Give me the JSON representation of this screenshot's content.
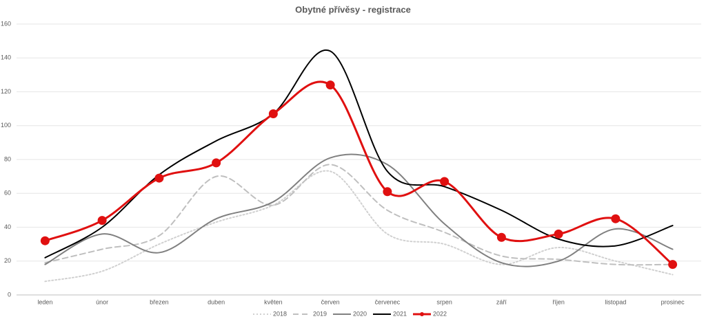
{
  "chart_data": {
    "type": "line",
    "title": "Obytné přívěsy - registrace",
    "categories": [
      "leden",
      "únor",
      "březen",
      "duben",
      "květen",
      "červen",
      "červenec",
      "srpen",
      "září",
      "říjen",
      "listopad",
      "prosinec"
    ],
    "series": [
      {
        "name": "2018",
        "color": "#d0d0d0",
        "style": "dotted",
        "marker": false,
        "values": [
          8,
          14,
          30,
          43,
          53,
          73,
          36,
          30,
          18,
          28,
          20,
          12
        ]
      },
      {
        "name": "2019",
        "color": "#bfbfbf",
        "style": "dashed",
        "marker": false,
        "values": [
          19,
          27,
          35,
          70,
          53,
          77,
          50,
          37,
          23,
          21,
          18,
          18
        ]
      },
      {
        "name": "2020",
        "color": "#808080",
        "style": "solid",
        "marker": false,
        "values": [
          18,
          36,
          25,
          45,
          55,
          81,
          77,
          42,
          19,
          20,
          39,
          27
        ]
      },
      {
        "name": "2021",
        "color": "#000000",
        "style": "solid",
        "marker": false,
        "values": [
          22,
          40,
          71,
          91,
          107,
          144,
          73,
          64,
          50,
          33,
          29,
          41
        ]
      },
      {
        "name": "2022",
        "color": "#e01010",
        "style": "solid",
        "marker": true,
        "values": [
          32,
          44,
          69,
          78,
          107,
          124,
          61,
          67,
          34,
          36,
          45,
          18
        ]
      }
    ],
    "ylim": [
      0,
      160
    ],
    "yticks": [
      0,
      20,
      40,
      60,
      80,
      100,
      120,
      140,
      160
    ],
    "grid": true
  }
}
